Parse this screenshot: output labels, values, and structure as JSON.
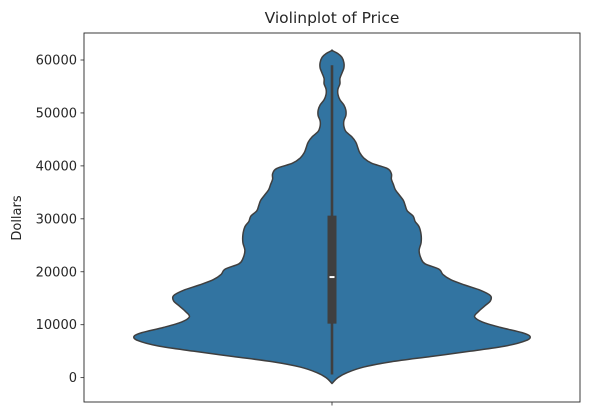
{
  "chart_data": {
    "type": "violin",
    "title": "Violinplot of Price",
    "xlabel": "",
    "ylabel": "Dollars",
    "ylim": [
      -4600,
      65100
    ],
    "yticks": [
      0,
      10000,
      20000,
      30000,
      40000,
      50000,
      60000
    ],
    "ytick_labels": [
      "0",
      "10000",
      "20000",
      "30000",
      "40000",
      "50000",
      "60000"
    ],
    "grid": false,
    "legend": "none",
    "colors": {
      "violin": "#3274a1",
      "edge": "#3f3f3f",
      "box": "#3f3f3f",
      "median": "#ffffff"
    },
    "density_profile": [
      [
        -1100,
        0.0
      ],
      [
        0,
        0.03
      ],
      [
        1000,
        0.08
      ],
      [
        2000,
        0.16
      ],
      [
        3000,
        0.3
      ],
      [
        4000,
        0.5
      ],
      [
        5000,
        0.7
      ],
      [
        6000,
        0.88
      ],
      [
        7000,
        0.98
      ],
      [
        7800,
        1.0
      ],
      [
        8500,
        0.96
      ],
      [
        9500,
        0.85
      ],
      [
        10500,
        0.76
      ],
      [
        11500,
        0.72
      ],
      [
        12500,
        0.74
      ],
      [
        13500,
        0.77
      ],
      [
        14500,
        0.8
      ],
      [
        15500,
        0.8
      ],
      [
        16500,
        0.75
      ],
      [
        17500,
        0.67
      ],
      [
        18500,
        0.6
      ],
      [
        19500,
        0.56
      ],
      [
        20500,
        0.54
      ],
      [
        21500,
        0.47
      ],
      [
        22500,
        0.45
      ],
      [
        24000,
        0.44
      ],
      [
        25500,
        0.45
      ],
      [
        27000,
        0.45
      ],
      [
        28500,
        0.44
      ],
      [
        29500,
        0.42
      ],
      [
        30500,
        0.41
      ],
      [
        31500,
        0.38
      ],
      [
        32500,
        0.37
      ],
      [
        33500,
        0.36
      ],
      [
        34500,
        0.34
      ],
      [
        35500,
        0.32
      ],
      [
        36500,
        0.31
      ],
      [
        37500,
        0.3
      ],
      [
        38500,
        0.3
      ],
      [
        39500,
        0.28
      ],
      [
        40500,
        0.2
      ],
      [
        41500,
        0.16
      ],
      [
        42500,
        0.14
      ],
      [
        43500,
        0.13
      ],
      [
        44500,
        0.12
      ],
      [
        45500,
        0.1
      ],
      [
        46500,
        0.07
      ],
      [
        47500,
        0.06
      ],
      [
        48500,
        0.06
      ],
      [
        49500,
        0.07
      ],
      [
        50500,
        0.07
      ],
      [
        51500,
        0.06
      ],
      [
        52500,
        0.04
      ],
      [
        53500,
        0.03
      ],
      [
        54500,
        0.03
      ],
      [
        55500,
        0.04
      ],
      [
        56500,
        0.04
      ],
      [
        57500,
        0.05
      ],
      [
        58500,
        0.06
      ],
      [
        59500,
        0.06
      ],
      [
        60500,
        0.05
      ],
      [
        61200,
        0.03
      ],
      [
        61800,
        0.0
      ]
    ],
    "box": {
      "whisker_low": 600,
      "q1": 10200,
      "median": 19000,
      "q3": 30600,
      "whisker_high": 59000
    }
  }
}
